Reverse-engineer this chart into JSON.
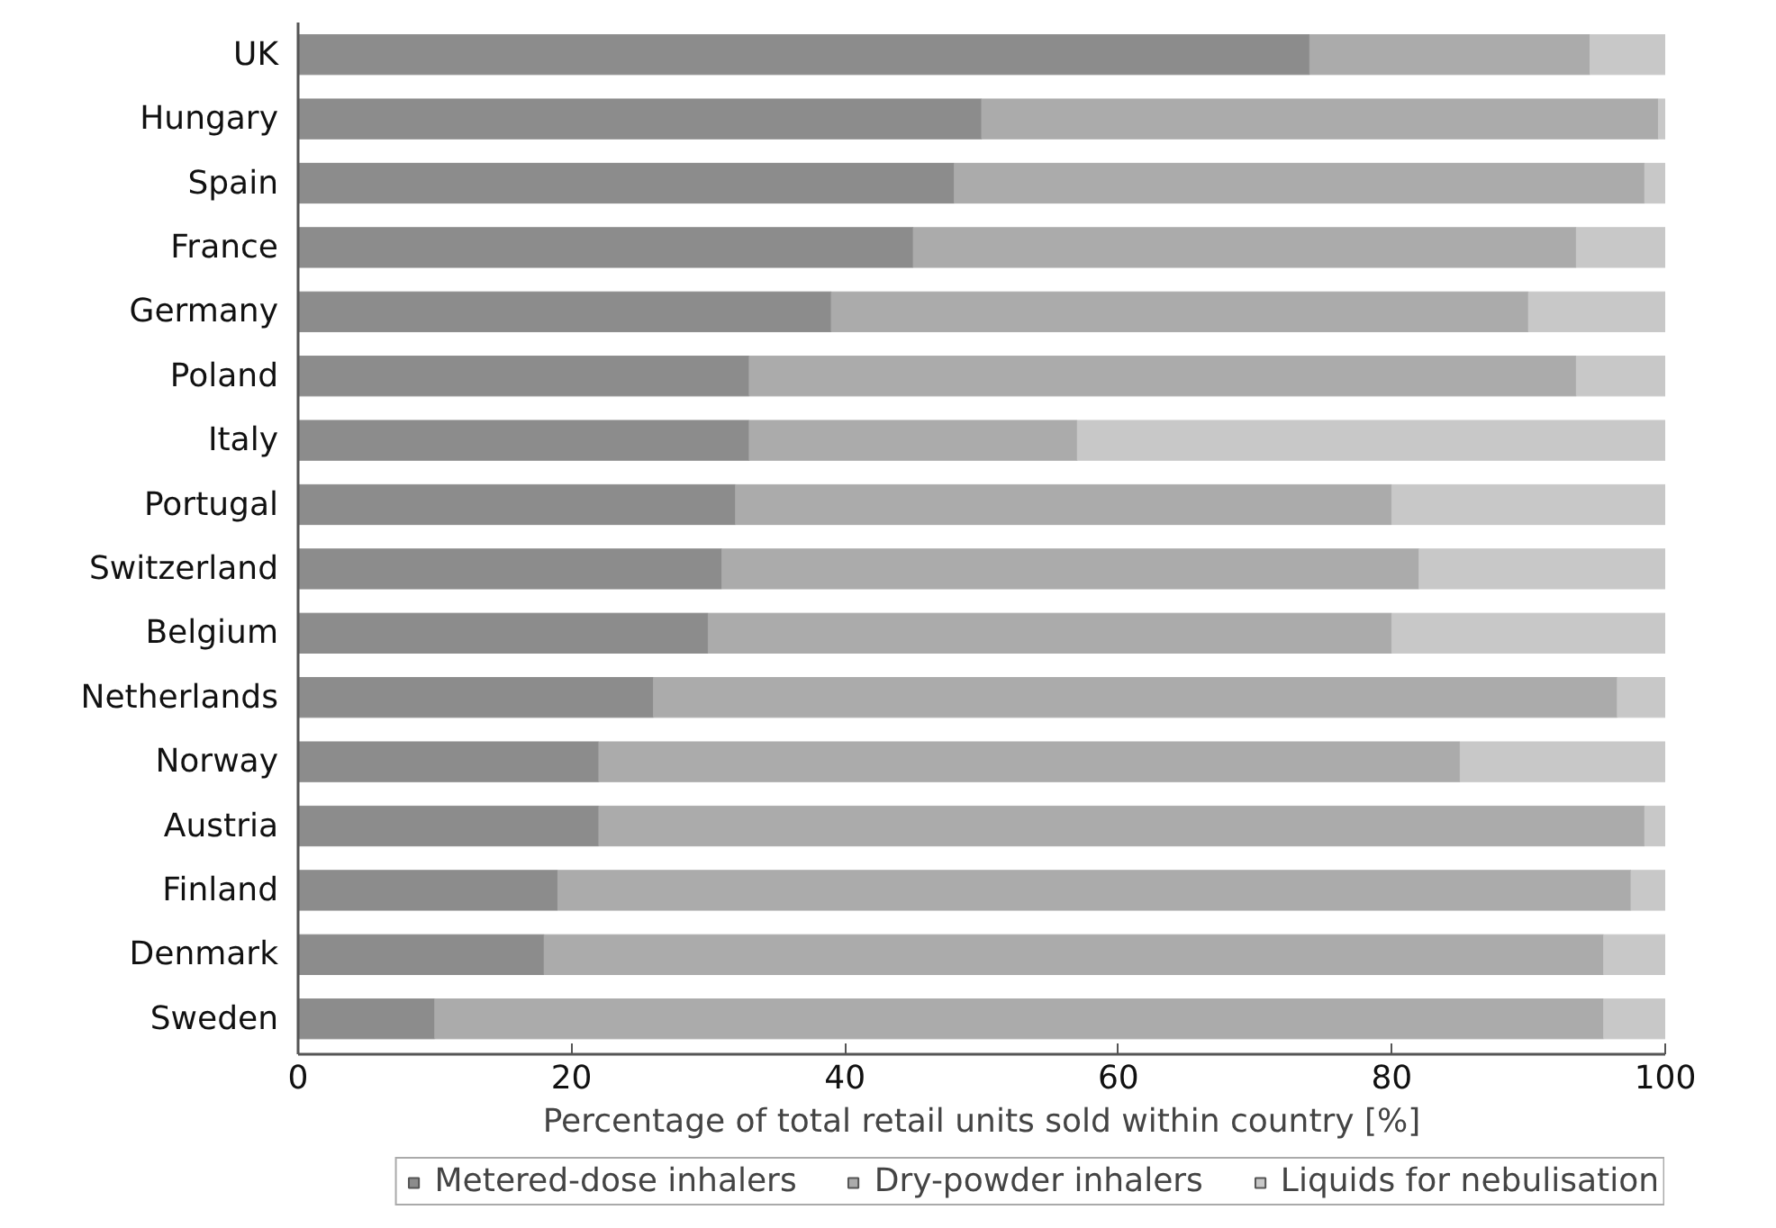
{
  "chart_data": {
    "type": "bar",
    "orientation": "horizontal",
    "stacked": true,
    "xlabel": "Percentage of total retail units sold within country [%]",
    "categories": [
      "UK",
      "Hungary",
      "Spain",
      "France",
      "Germany",
      "Poland",
      "Italy",
      "Portugal",
      "Switzerland",
      "Belgium",
      "Netherlands",
      "Norway",
      "Austria",
      "Finland",
      "Denmark",
      "Sweden"
    ],
    "series": [
      {
        "name": "Metered-dose inhalers",
        "color": "#8c8c8c",
        "values": [
          74,
          50,
          48,
          45,
          39,
          33,
          33,
          32,
          31,
          30,
          26,
          22,
          22,
          19,
          18,
          10
        ]
      },
      {
        "name": "Dry-powder inhalers",
        "color": "#ababab",
        "values": [
          20.5,
          49.5,
          50.5,
          48.5,
          51,
          60.5,
          24,
          48,
          51,
          50,
          70.5,
          63,
          76.5,
          78.5,
          77.5,
          85.5
        ]
      },
      {
        "name": "Liquids for nebulisation",
        "color": "#c8c8c8",
        "values": [
          5.5,
          0.5,
          1.5,
          6.5,
          10,
          6.5,
          43,
          20,
          18,
          20,
          3.5,
          15,
          1.5,
          2.5,
          4.5,
          4.5
        ]
      }
    ],
    "xlim": [
      0,
      100
    ],
    "xticks": [
      0,
      20,
      40,
      60,
      80,
      100
    ],
    "grid": false,
    "legend": "bottom"
  }
}
